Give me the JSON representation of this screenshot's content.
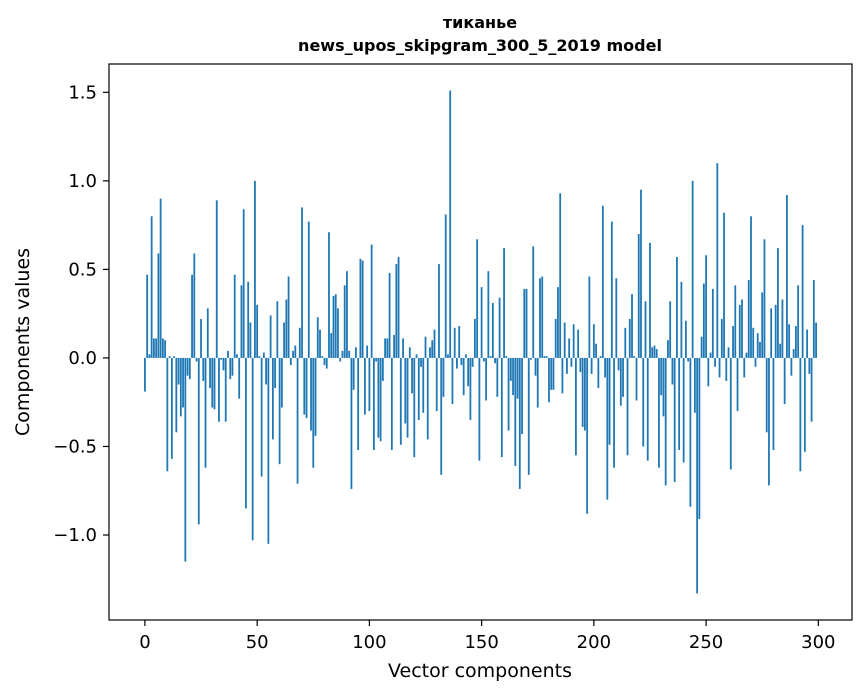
{
  "chart_data": {
    "type": "bar",
    "title": "тиканье",
    "subtitle": "news_upos_skipgram_300_5_2019 model",
    "xlabel": "Vector components",
    "ylabel": "Components values",
    "xlim": [
      -16,
      315
    ],
    "ylim": [
      -1.48,
      1.66
    ],
    "xticks": [
      0,
      50,
      100,
      150,
      200,
      250,
      300
    ],
    "xtick_labels": [
      "0",
      "50",
      "100",
      "150",
      "200",
      "250",
      "300"
    ],
    "yticks": [
      -1.0,
      -0.5,
      0.0,
      0.5,
      1.0,
      1.5
    ],
    "ytick_labels": [
      "−1.0",
      "−0.5",
      "0.0",
      "0.5",
      "1.0",
      "1.5"
    ],
    "bar_color": "#1f77b4",
    "x": "0..299 (one bar per vector component index)",
    "values": [
      -0.19,
      0.47,
      0.02,
      0.8,
      0.11,
      0.11,
      0.59,
      0.9,
      0.11,
      0.1,
      -0.64,
      0.01,
      -0.57,
      0.01,
      -0.42,
      -0.15,
      -0.33,
      -0.28,
      -1.15,
      -0.1,
      -0.12,
      0.47,
      0.59,
      -0.02,
      -0.94,
      0.22,
      -0.13,
      -0.62,
      0.28,
      -0.17,
      -0.28,
      -0.29,
      0.89,
      -0.36,
      -0.01,
      -0.07,
      -0.36,
      0.04,
      -0.12,
      -0.1,
      0.47,
      0.02,
      -0.23,
      0.41,
      0.84,
      -0.85,
      0.43,
      0.2,
      -1.03,
      1.0,
      0.3,
      0.01,
      -0.67,
      0.03,
      -0.15,
      -1.05,
      0.24,
      -0.46,
      -0.17,
      0.32,
      -0.6,
      -0.28,
      0.2,
      0.33,
      0.46,
      -0.04,
      0.04,
      0.07,
      -0.71,
      0.17,
      0.85,
      -0.32,
      -0.34,
      0.77,
      -0.41,
      -0.62,
      -0.44,
      0.23,
      0.16,
      0.01,
      -0.04,
      -0.06,
      0.71,
      0.14,
      0.35,
      0.36,
      0.28,
      -0.02,
      0.04,
      0.41,
      0.49,
      0.04,
      -0.74,
      -0.18,
      0.06,
      -0.52,
      0.56,
      0.55,
      -0.32,
      0.07,
      -0.3,
      0.64,
      -0.52,
      -0.02,
      -0.45,
      -0.47,
      -0.13,
      0.11,
      0.11,
      0.48,
      -0.52,
      0.13,
      0.53,
      0.57,
      -0.49,
      0.11,
      -0.37,
      -0.45,
      0.06,
      -0.2,
      -0.56,
      0.02,
      -0.35,
      -0.05,
      -0.31,
      0.12,
      -0.46,
      0.06,
      0.1,
      0.16,
      -0.3,
      0.53,
      -0.66,
      -0.22,
      0.81,
      0.02,
      1.51,
      -0.26,
      0.17,
      -0.06,
      0.18,
      -0.04,
      -0.21,
      0.02,
      -0.16,
      -0.35,
      -0.05,
      0.22,
      0.67,
      -0.58,
      0.4,
      -0.02,
      -0.24,
      0.49,
      0.01,
      0.31,
      -0.03,
      -0.22,
      0.34,
      -0.56,
      0.62,
      0.01,
      -0.41,
      -0.13,
      -0.21,
      -0.61,
      -0.23,
      -0.74,
      -0.43,
      0.39,
      0.39,
      -0.66,
      -0.01,
      0.63,
      -0.1,
      -0.28,
      0.45,
      0.46,
      0.01,
      0.01,
      -0.25,
      -0.18,
      -0.18,
      0.22,
      0.4,
      0.93,
      -0.2,
      0.2,
      -0.09,
      0.11,
      -0.05,
      0.19,
      -0.55,
      0.16,
      -0.08,
      -0.39,
      -0.41,
      -0.88,
      0.46,
      -0.09,
      0.19,
      0.08,
      -0.17,
      0.01,
      0.86,
      -0.11,
      -0.8,
      -0.49,
      0.77,
      -0.62,
      0.45,
      -0.07,
      -0.27,
      -0.22,
      0.17,
      -0.55,
      0.22,
      0.36,
      0.01,
      -0.24,
      0.7,
      0.95,
      -0.5,
      0.32,
      -0.58,
      0.65,
      0.06,
      0.07,
      0.05,
      -0.62,
      -0.21,
      -0.33,
      -0.72,
      0.1,
      0.32,
      -0.15,
      -0.7,
      0.57,
      -0.52,
      0.43,
      -0.59,
      0.21,
      -0.02,
      -0.84,
      1.0,
      -0.31,
      -1.33,
      -0.91,
      0.12,
      0.42,
      0.58,
      -0.16,
      0.03,
      0.39,
      -0.05,
      1.1,
      -0.11,
      0.22,
      0.82,
      -0.13,
      0.06,
      -0.63,
      0.18,
      0.41,
      -0.3,
      0.3,
      0.33,
      -0.11,
      0.03,
      0.44,
      0.8,
      0.17,
      -0.05,
      0.14,
      0.09,
      0.37,
      0.67,
      -0.42,
      -0.72,
      0.28,
      -0.52,
      0.3,
      0.62,
      0.08,
      0.33,
      -0.26,
      0.92,
      0.19,
      -0.1,
      0.05,
      0.18,
      0.41,
      -0.64,
      0.75,
      -0.53,
      0.16,
      -0.09,
      -0.36,
      0.44,
      0.2
    ]
  }
}
